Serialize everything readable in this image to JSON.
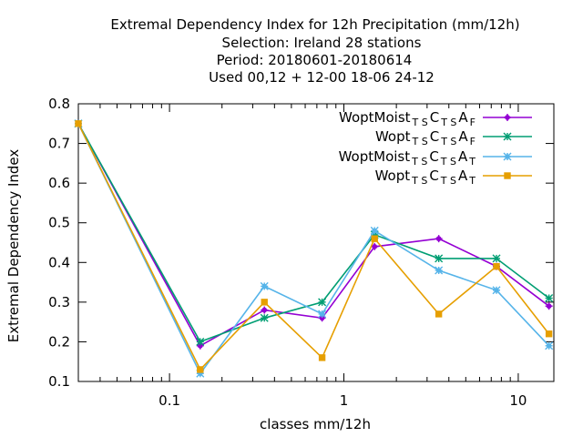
{
  "chart_data": {
    "type": "line",
    "title_lines": [
      "Extremal Dependency Index  for 12h Precipitation (mm/12h)",
      "Selection: Ireland      28 stations",
      "Period: 20180601-20180614",
      "Used  00,12  + 12-00 18-06 24-12"
    ],
    "xlabel": "classes mm/12h",
    "ylabel": "Extremal Dependency Index",
    "x_scale": "log",
    "xlim": [
      0.03,
      16
    ],
    "ylim": [
      0.1,
      0.8
    ],
    "x_ticks": [
      {
        "value": 0.1,
        "label": "0.1"
      },
      {
        "value": 1,
        "label": "1"
      },
      {
        "value": 10,
        "label": "10"
      }
    ],
    "y_ticks": [
      {
        "value": 0.1,
        "label": "0.1"
      },
      {
        "value": 0.2,
        "label": "0.2"
      },
      {
        "value": 0.3,
        "label": "0.3"
      },
      {
        "value": 0.4,
        "label": "0.4"
      },
      {
        "value": 0.5,
        "label": "0.5"
      },
      {
        "value": 0.6,
        "label": "0.6"
      },
      {
        "value": 0.7,
        "label": "0.7"
      },
      {
        "value": 0.8,
        "label": "0.8"
      }
    ],
    "grid": false,
    "legend_position": "top-right",
    "x": [
      0.03,
      0.15,
      0.35,
      0.75,
      1.5,
      3.5,
      7.5,
      15
    ],
    "series": [
      {
        "name_main": "WoptMoist",
        "sub1": "T S",
        "mid": "C",
        "sub2": "T S",
        "end": "A",
        "sub3": "F",
        "color": "#9400d3",
        "marker": "plus",
        "values": [
          0.75,
          0.19,
          0.28,
          0.26,
          0.44,
          0.46,
          0.39,
          0.29
        ]
      },
      {
        "name_main": "Wopt",
        "sub1": "T S",
        "mid": "C",
        "sub2": "T S",
        "end": "A",
        "sub3": "F",
        "color": "#009e73",
        "marker": "cross",
        "values": [
          0.75,
          0.2,
          0.26,
          0.3,
          0.47,
          0.41,
          0.41,
          0.31
        ]
      },
      {
        "name_main": "WoptMoist",
        "sub1": "T S",
        "mid": "C",
        "sub2": "T S",
        "end": "A",
        "sub3": "T",
        "color": "#56b4e9",
        "marker": "star",
        "values": [
          0.75,
          0.12,
          0.34,
          0.27,
          0.48,
          0.38,
          0.33,
          0.19
        ]
      },
      {
        "name_main": "Wopt",
        "sub1": "T S",
        "mid": "C",
        "sub2": "T S",
        "end": "A",
        "sub3": "T",
        "color": "#e69f00",
        "marker": "box",
        "values": [
          0.75,
          0.13,
          0.3,
          0.16,
          0.46,
          0.27,
          0.39,
          0.22
        ]
      }
    ]
  }
}
